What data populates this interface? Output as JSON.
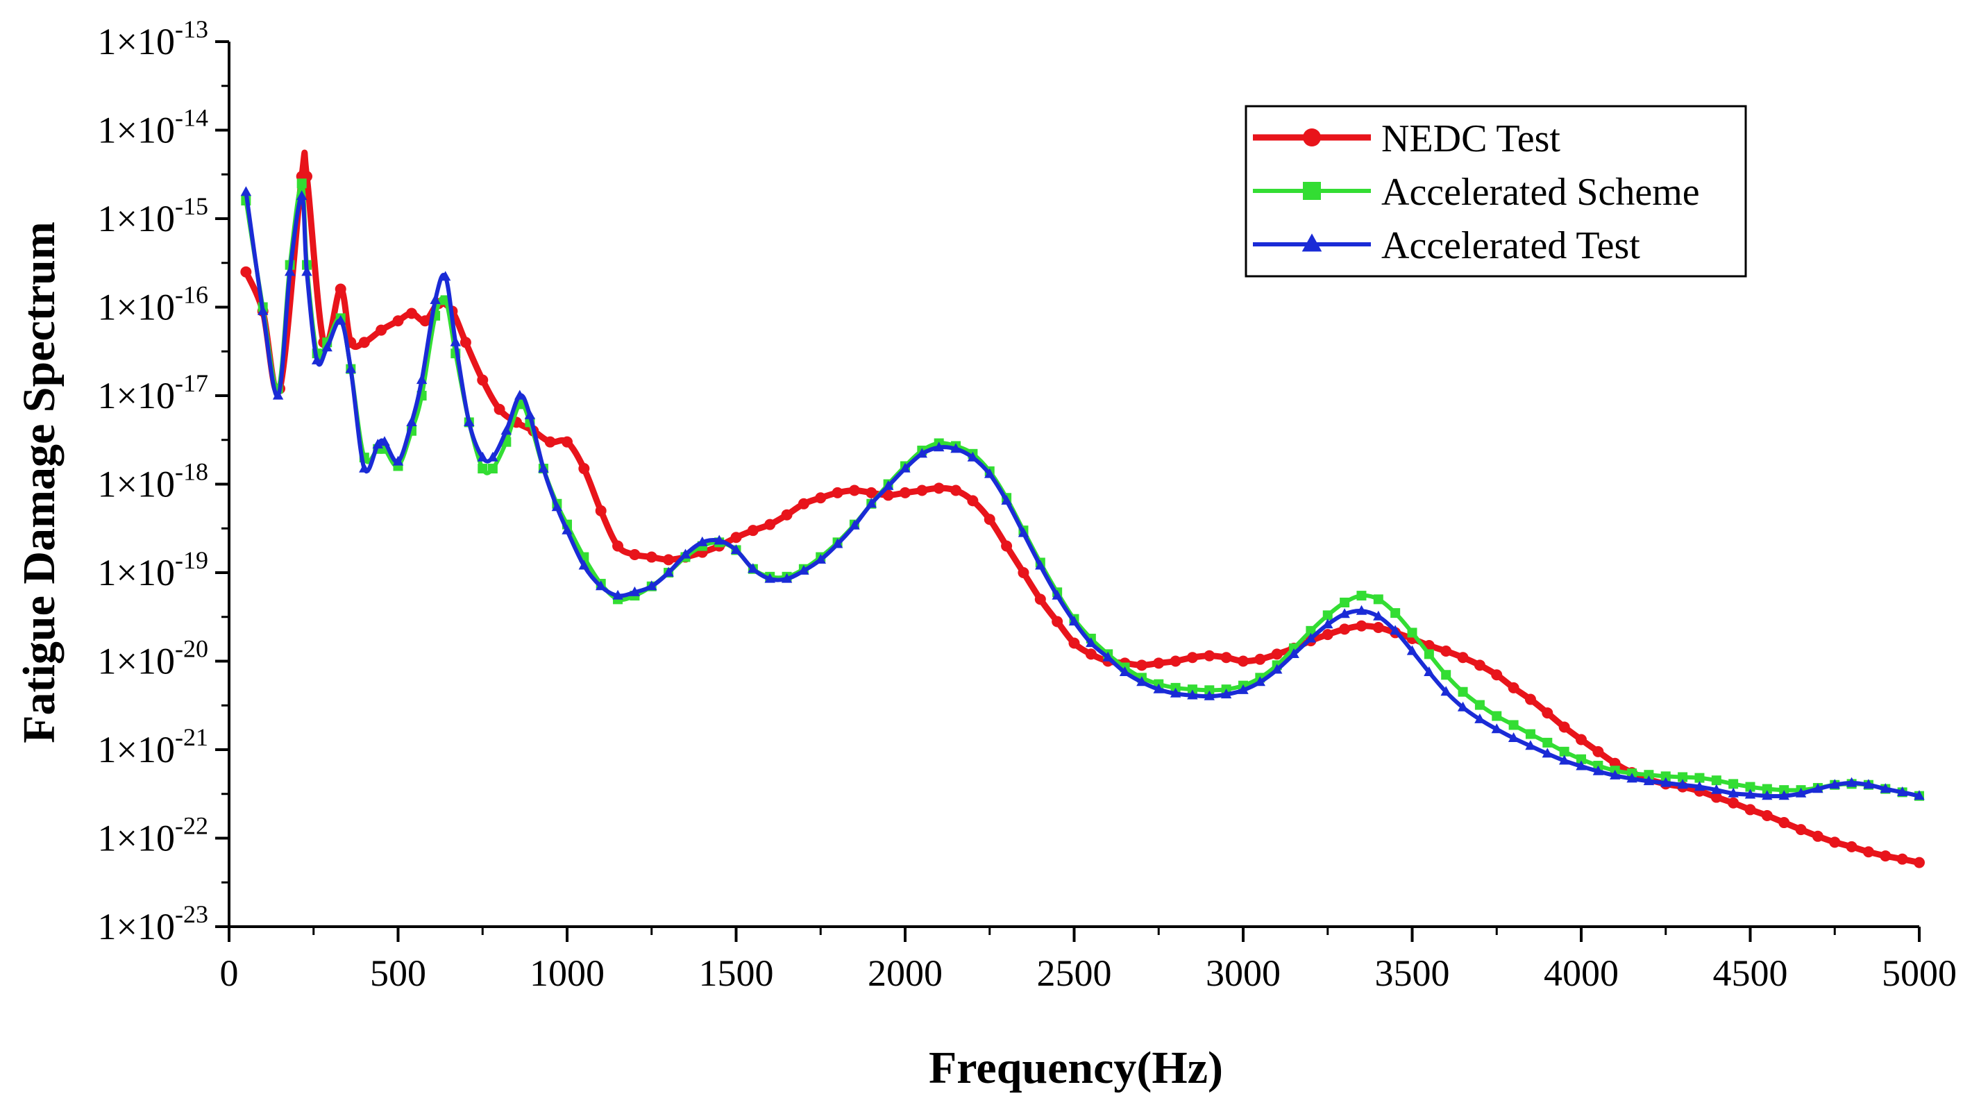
{
  "chart_data": {
    "type": "line",
    "xlabel": "Frequency(Hz)",
    "ylabel": "Fatigue Damage Spectrum",
    "xlim": [
      0,
      5000
    ],
    "ylim": [
      1e-23,
      1e-13
    ],
    "yscale": "log",
    "grid": false,
    "legend_position": "top-right",
    "x_ticks": [
      0,
      500,
      1000,
      1500,
      2000,
      2500,
      3000,
      3500,
      4000,
      4500,
      5000
    ],
    "x_tick_labels": [
      "0",
      "500",
      "1000",
      "1500",
      "2000",
      "2500",
      "3000",
      "3500",
      "4000",
      "4500",
      "5000"
    ],
    "y_tick_labels": [
      {
        "base": "1×10",
        "exp": "-13"
      },
      {
        "base": "1×10",
        "exp": "-14"
      },
      {
        "base": "1×10",
        "exp": "-15"
      },
      {
        "base": "1×10",
        "exp": "-16"
      },
      {
        "base": "1×10",
        "exp": "-17"
      },
      {
        "base": "1×10",
        "exp": "-18"
      },
      {
        "base": "1×10",
        "exp": "-19"
      },
      {
        "base": "1×10",
        "exp": "-20"
      },
      {
        "base": "1×10",
        "exp": "-21"
      },
      {
        "base": "1×10",
        "exp": "-22"
      },
      {
        "base": "1×10",
        "exp": "-23"
      }
    ],
    "series": [
      {
        "name": "NEDC Test",
        "color": "#e8141b",
        "marker": "circle",
        "x": [
          50,
          100,
          150,
          215,
          230,
          280,
          330,
          360,
          400,
          450,
          500,
          540,
          580,
          620,
          660,
          700,
          750,
          800,
          850,
          900,
          950,
          1000,
          1050,
          1100,
          1150,
          1200,
          1250,
          1300,
          1350,
          1400,
          1450,
          1500,
          1550,
          1600,
          1650,
          1700,
          1750,
          1800,
          1850,
          1900,
          1950,
          2000,
          2050,
          2100,
          2150,
          2200,
          2250,
          2300,
          2350,
          2400,
          2450,
          2500,
          2550,
          2600,
          2650,
          2700,
          2750,
          2800,
          2850,
          2900,
          2950,
          3000,
          3050,
          3100,
          3150,
          3200,
          3250,
          3300,
          3350,
          3400,
          3450,
          3500,
          3550,
          3600,
          3650,
          3700,
          3750,
          3800,
          3850,
          3900,
          3950,
          4000,
          4050,
          4100,
          4150,
          4200,
          4250,
          4300,
          4350,
          4400,
          4450,
          4500,
          4550,
          4600,
          4650,
          4700,
          4750,
          4800,
          4850,
          4900,
          4950,
          5000
        ],
        "y": [
          2.5e-16,
          9e-17,
          1.2e-17,
          3e-15,
          3e-15,
          4e-17,
          1.6e-16,
          4e-17,
          4e-17,
          5.5e-17,
          7e-17,
          8.5e-17,
          7e-17,
          1.1e-16,
          9e-17,
          4e-17,
          1.5e-17,
          7e-18,
          5e-18,
          4e-18,
          3e-18,
          3e-18,
          1.5e-18,
          5e-19,
          2e-19,
          1.6e-19,
          1.5e-19,
          1.4e-19,
          1.5e-19,
          1.7e-19,
          2e-19,
          2.5e-19,
          3e-19,
          3.5e-19,
          4.5e-19,
          6e-19,
          7e-19,
          8e-19,
          8.5e-19,
          8e-19,
          7.5e-19,
          8e-19,
          8.5e-19,
          9e-19,
          8.5e-19,
          6.5e-19,
          4e-19,
          2e-19,
          1e-19,
          5e-20,
          2.8e-20,
          1.6e-20,
          1.2e-20,
          1e-20,
          9.5e-21,
          9e-21,
          9.5e-21,
          1e-20,
          1.1e-20,
          1.15e-20,
          1.1e-20,
          1e-20,
          1.05e-20,
          1.2e-20,
          1.4e-20,
          1.7e-20,
          2e-20,
          2.3e-20,
          2.5e-20,
          2.4e-20,
          2.1e-20,
          1.8e-20,
          1.5e-20,
          1.3e-20,
          1.1e-20,
          9e-21,
          7e-21,
          5e-21,
          3.7e-21,
          2.6e-21,
          1.8e-21,
          1.3e-21,
          9.5e-22,
          7e-22,
          5.5e-22,
          4.6e-22,
          4.1e-22,
          3.8e-22,
          3.4e-22,
          2.9e-22,
          2.5e-22,
          2.1e-22,
          1.8e-22,
          1.5e-22,
          1.25e-22,
          1.05e-22,
          9e-23,
          8e-23,
          7e-23,
          6.3e-23,
          5.8e-23,
          5.3e-23
        ]
      },
      {
        "name": "Accelerated Scheme",
        "color": "#33dd33",
        "marker": "square",
        "x": [
          50,
          100,
          145,
          180,
          215,
          230,
          260,
          290,
          330,
          360,
          400,
          440,
          460,
          500,
          540,
          570,
          610,
          640,
          670,
          710,
          750,
          780,
          820,
          860,
          890,
          930,
          970,
          1000,
          1050,
          1100,
          1150,
          1200,
          1250,
          1300,
          1350,
          1400,
          1450,
          1500,
          1550,
          1600,
          1650,
          1700,
          1750,
          1800,
          1850,
          1900,
          1950,
          2000,
          2050,
          2100,
          2150,
          2200,
          2250,
          2300,
          2350,
          2400,
          2450,
          2500,
          2550,
          2600,
          2650,
          2700,
          2750,
          2800,
          2850,
          2900,
          2950,
          3000,
          3050,
          3100,
          3150,
          3200,
          3250,
          3300,
          3350,
          3400,
          3450,
          3500,
          3550,
          3600,
          3650,
          3700,
          3750,
          3800,
          3850,
          3900,
          3950,
          4000,
          4050,
          4100,
          4150,
          4200,
          4250,
          4300,
          4350,
          4400,
          4450,
          4500,
          4550,
          4600,
          4650,
          4700,
          4750,
          4800,
          4850,
          4900,
          4950,
          5000
        ],
        "y": [
          1.6e-15,
          1e-16,
          1.2e-17,
          3e-16,
          2.5e-15,
          3e-16,
          3e-17,
          4e-17,
          7.5e-17,
          2e-17,
          2e-18,
          2.5e-18,
          2.5e-18,
          1.6e-18,
          4e-18,
          1e-17,
          8e-17,
          1.2e-16,
          3e-17,
          5e-18,
          1.5e-18,
          1.5e-18,
          3e-18,
          8e-18,
          5e-18,
          1.5e-18,
          6e-19,
          3.5e-19,
          1.5e-19,
          7.5e-20,
          5e-20,
          5.5e-20,
          7e-20,
          1e-19,
          1.5e-19,
          2e-19,
          2.2e-19,
          1.8e-19,
          1.1e-19,
          9e-20,
          9e-20,
          1.1e-19,
          1.5e-19,
          2.2e-19,
          3.5e-19,
          6e-19,
          1e-18,
          1.6e-18,
          2.4e-18,
          2.9e-18,
          2.7e-18,
          2.2e-18,
          1.4e-18,
          7e-19,
          3e-19,
          1.3e-19,
          6e-20,
          3e-20,
          1.8e-20,
          1.2e-20,
          8.5e-21,
          6.5e-21,
          5.5e-21,
          5e-21,
          4.8e-21,
          4.7e-21,
          4.8e-21,
          5.3e-21,
          6.5e-21,
          9e-21,
          1.4e-20,
          2.2e-20,
          3.3e-20,
          4.6e-20,
          5.5e-20,
          5e-20,
          3.5e-20,
          2.1e-20,
          1.2e-20,
          7e-21,
          4.5e-21,
          3.2e-21,
          2.4e-21,
          1.9e-21,
          1.5e-21,
          1.2e-21,
          9.5e-22,
          7.8e-22,
          6.6e-22,
          5.8e-22,
          5.4e-22,
          5.2e-22,
          5e-22,
          4.9e-22,
          4.8e-22,
          4.5e-22,
          4.1e-22,
          3.8e-22,
          3.6e-22,
          3.5e-22,
          3.5e-22,
          3.7e-22,
          4e-22,
          4.1e-22,
          4e-22,
          3.6e-22,
          3.3e-22,
          3e-22
        ]
      },
      {
        "name": "Accelerated Test",
        "color": "#1a2bd6",
        "marker": "triangle",
        "x": [
          50,
          100,
          145,
          180,
          215,
          230,
          260,
          290,
          330,
          360,
          400,
          440,
          460,
          500,
          540,
          570,
          610,
          640,
          670,
          710,
          750,
          780,
          820,
          860,
          890,
          930,
          970,
          1000,
          1050,
          1100,
          1150,
          1200,
          1250,
          1300,
          1350,
          1400,
          1450,
          1500,
          1550,
          1600,
          1650,
          1700,
          1750,
          1800,
          1850,
          1900,
          1950,
          2000,
          2050,
          2100,
          2150,
          2200,
          2250,
          2300,
          2350,
          2400,
          2450,
          2500,
          2550,
          2600,
          2650,
          2700,
          2750,
          2800,
          2850,
          2900,
          2950,
          3000,
          3050,
          3100,
          3150,
          3200,
          3250,
          3300,
          3350,
          3400,
          3450,
          3500,
          3550,
          3600,
          3650,
          3700,
          3750,
          3800,
          3850,
          3900,
          3950,
          4000,
          4050,
          4100,
          4150,
          4200,
          4250,
          4300,
          4350,
          4400,
          4450,
          4500,
          4550,
          4600,
          4650,
          4700,
          4750,
          4800,
          4850,
          4900,
          4950,
          5000
        ],
        "y": [
          2e-15,
          9e-17,
          1e-17,
          2.5e-16,
          1.8e-15,
          2.5e-16,
          2.5e-17,
          3.5e-17,
          7e-17,
          2e-17,
          1.5e-18,
          2.8e-18,
          3e-18,
          1.8e-18,
          5e-18,
          1.5e-17,
          1.2e-16,
          2.2e-16,
          4e-17,
          5e-18,
          2e-18,
          2e-18,
          4e-18,
          1e-17,
          6e-18,
          1.5e-18,
          5.5e-19,
          3e-19,
          1.2e-19,
          7e-20,
          5.5e-20,
          6e-20,
          7e-20,
          1e-19,
          1.6e-19,
          2.2e-19,
          2.3e-19,
          1.8e-19,
          1.1e-19,
          8.5e-20,
          8.5e-20,
          1.05e-19,
          1.4e-19,
          2.1e-19,
          3.4e-19,
          6e-19,
          9.5e-19,
          1.5e-18,
          2.2e-18,
          2.6e-18,
          2.5e-18,
          2e-18,
          1.3e-18,
          6.5e-19,
          2.8e-19,
          1.2e-19,
          5.5e-20,
          2.8e-20,
          1.6e-20,
          1.1e-20,
          7.5e-21,
          5.8e-21,
          4.8e-21,
          4.3e-21,
          4.1e-21,
          4e-21,
          4.2e-21,
          4.7e-21,
          5.8e-21,
          8e-21,
          1.2e-20,
          1.8e-20,
          2.6e-20,
          3.4e-20,
          3.7e-20,
          3.2e-20,
          2.2e-20,
          1.3e-20,
          7.5e-21,
          4.5e-21,
          3e-21,
          2.2e-21,
          1.7e-21,
          1.35e-21,
          1.1e-21,
          9e-22,
          7.5e-22,
          6.5e-22,
          5.7e-22,
          5.1e-22,
          4.7e-22,
          4.4e-22,
          4.2e-22,
          4e-22,
          3.8e-22,
          3.5e-22,
          3.2e-22,
          3.1e-22,
          3e-22,
          3e-22,
          3.2e-22,
          3.6e-22,
          4e-22,
          4.2e-22,
          4e-22,
          3.6e-22,
          3.3e-22,
          3e-22
        ]
      }
    ]
  }
}
